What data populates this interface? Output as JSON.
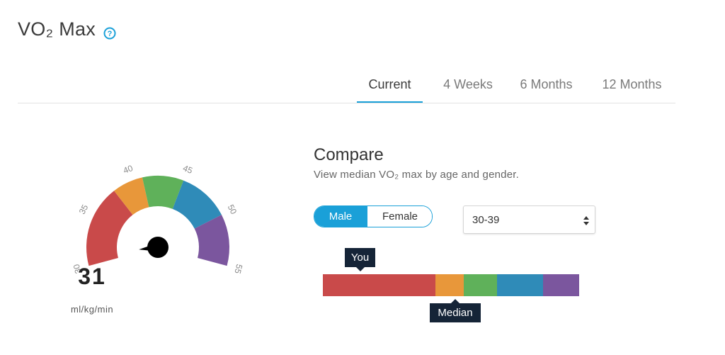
{
  "header": {
    "title": "VO₂ Max",
    "help_icon": "question-circle-icon"
  },
  "tabs": [
    {
      "label": "Current",
      "active": true
    },
    {
      "label": "4 Weeks",
      "active": false
    },
    {
      "label": "6 Months",
      "active": false
    },
    {
      "label": "12 Months",
      "active": false
    }
  ],
  "gauge": {
    "value": "31",
    "unit": "ml/kg/min",
    "ticks": [
      "30",
      "35",
      "40",
      "45",
      "50",
      "55"
    ],
    "needle_value": 31,
    "range": [
      30,
      55
    ],
    "bands": [
      {
        "from": 30,
        "to": 38,
        "color": "#c94a4a"
      },
      {
        "from": 38,
        "to": 41,
        "color": "#e8973a"
      },
      {
        "from": 41,
        "to": 45,
        "color": "#5fb15a"
      },
      {
        "from": 45,
        "to": 50,
        "color": "#2f8bb8"
      },
      {
        "from": 50,
        "to": 55,
        "color": "#7b569e"
      }
    ]
  },
  "compare": {
    "title": "Compare",
    "subtitle": "View median VO₂ max by age and gender.",
    "gender": {
      "male": "Male",
      "female": "Female",
      "selected": "Male"
    },
    "age_select": {
      "value": "30-39"
    },
    "bar": {
      "segments": [
        {
          "fraction": 0.44,
          "color": "#c94a4a"
        },
        {
          "fraction": 0.11,
          "color": "#e8973a"
        },
        {
          "fraction": 0.13,
          "color": "#5fb15a"
        },
        {
          "fraction": 0.18,
          "color": "#2f8bb8"
        },
        {
          "fraction": 0.14,
          "color": "#7b569e"
        }
      ],
      "you_label": "You",
      "median_label": "Median"
    }
  },
  "colors": {
    "accent": "#1aa0d8",
    "tooltip": "#152437"
  }
}
